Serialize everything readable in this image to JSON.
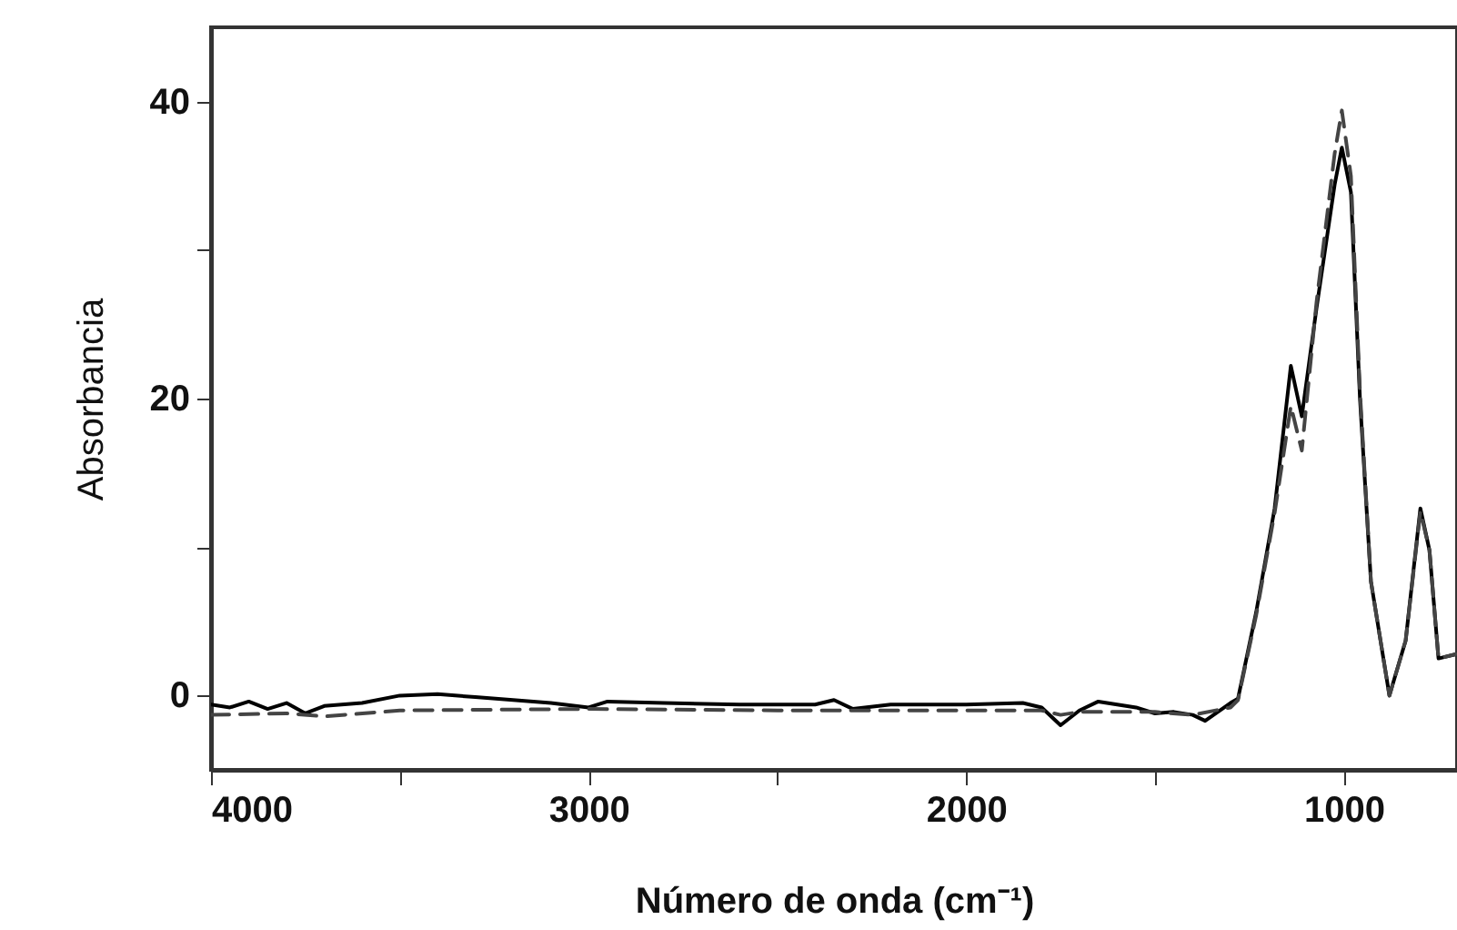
{
  "chart_data": {
    "type": "line",
    "xlabel": "Número de onda (cm⁻¹)",
    "ylabel": "Absorbancia",
    "xlim": [
      4000,
      700
    ],
    "ylim": [
      -5,
      45
    ],
    "xticks": [
      4000,
      {
        "value": 3500,
        "label": null
      },
      3000,
      {
        "value": 2500,
        "label": null
      },
      2000,
      {
        "value": 1500,
        "label": null
      },
      1000
    ],
    "yticks": [
      0,
      {
        "value": 10,
        "label": null
      },
      20,
      {
        "value": 30,
        "label": null
      },
      40
    ],
    "grid": false,
    "marker": "none",
    "series": [
      {
        "color": "#000000",
        "line_style": "solid",
        "x": [
          4000,
          3950,
          3900,
          3850,
          3800,
          3750,
          3700,
          3600,
          3500,
          3400,
          3300,
          3200,
          3100,
          3000,
          2950,
          2800,
          2600,
          2400,
          2350,
          2300,
          2200,
          2000,
          1850,
          1800,
          1750,
          1700,
          1650,
          1550,
          1500,
          1450,
          1400,
          1367,
          1300,
          1280,
          1232,
          1183,
          1140,
          1111,
          1072,
          1024,
          1005,
          981,
          957,
          928,
          879,
          836,
          797,
          773,
          749,
          701
        ],
        "values": [
          -0.6,
          -0.8,
          -0.4,
          -0.9,
          -0.5,
          -1.2,
          -0.7,
          -0.5,
          0,
          0.1,
          -0.1,
          -0.3,
          -0.5,
          -0.8,
          -0.4,
          -0.5,
          -0.6,
          -0.6,
          -0.3,
          -0.9,
          -0.6,
          -0.6,
          -0.5,
          -0.8,
          -2,
          -1,
          -0.4,
          -0.8,
          -1.2,
          -1.1,
          -1.3,
          -1.7,
          -0.5,
          -0.2,
          5.6,
          12.6,
          22.2,
          18.8,
          26.1,
          34.4,
          36.9,
          33.9,
          20,
          7.7,
          0,
          3.7,
          12.6,
          9.8,
          2.5,
          2.8
        ]
      },
      {
        "color": "#444444",
        "line_style": "dashed",
        "x": [
          4000,
          3800,
          3700,
          3500,
          3000,
          2500,
          2000,
          1800,
          1750,
          1700,
          1500,
          1400,
          1300,
          1280,
          1232,
          1183,
          1140,
          1111,
          1072,
          1024,
          1005,
          981,
          957,
          928,
          879,
          836,
          797,
          773,
          749,
          701
        ],
        "values": [
          -1.3,
          -1.2,
          -1.4,
          -1,
          -0.9,
          -1,
          -1,
          -1,
          -1.3,
          -1.1,
          -1.1,
          -1.3,
          -0.8,
          -0.3,
          5.4,
          12.3,
          19.5,
          16.5,
          26.5,
          36.5,
          39.4,
          35,
          20.5,
          7.7,
          0,
          3.7,
          12.4,
          9.8,
          2.5,
          2.8
        ]
      }
    ]
  }
}
